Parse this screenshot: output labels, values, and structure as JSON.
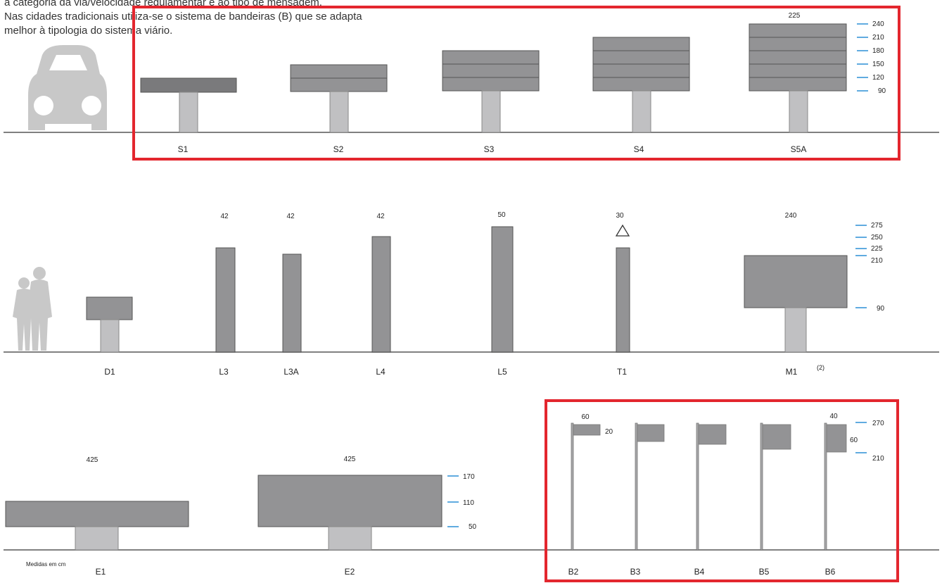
{
  "intro": {
    "line0": "a categoria da via/velocidade regulamentar e ao tipo de mensagem.",
    "line1": "Nas cidades tradicionais utiliza-se o sistema de bandeiras (B) que se adapta",
    "line2": "melhor à tipologia do sistema viário."
  },
  "row1": {
    "top_dim": "225",
    "labels": [
      "S1",
      "S2",
      "S3",
      "S4",
      "S5A"
    ],
    "scale": [
      "240",
      "210",
      "180",
      "150",
      "120",
      "90"
    ]
  },
  "row2": {
    "widths": [
      "42",
      "42",
      "42",
      "50",
      "30",
      "240"
    ],
    "labels": [
      "D1",
      "L3",
      "L3A",
      "L4",
      "L5",
      "T1",
      "M1"
    ],
    "note": "(2)",
    "scale": [
      "275",
      "250",
      "225",
      "210",
      "90"
    ]
  },
  "row3": {
    "widths": [
      "425",
      "425"
    ],
    "e_scale": [
      "170",
      "110",
      "50"
    ],
    "labels": [
      "E1",
      "E2",
      "B2",
      "B3",
      "B4",
      "B5",
      "B6"
    ],
    "flag_dims": [
      "60",
      "20",
      "40",
      "60"
    ],
    "b_scale": [
      "270",
      "210"
    ],
    "footnote": "Medidas em cm"
  },
  "colors": {
    "panel": "#939395",
    "panel_dark": "#7a7a7c",
    "post": "#c0c0c2",
    "ground": "#808080",
    "scale": "#2b8fd6",
    "highlight": "#e3262e",
    "silhouette": "#c8c8c8"
  }
}
